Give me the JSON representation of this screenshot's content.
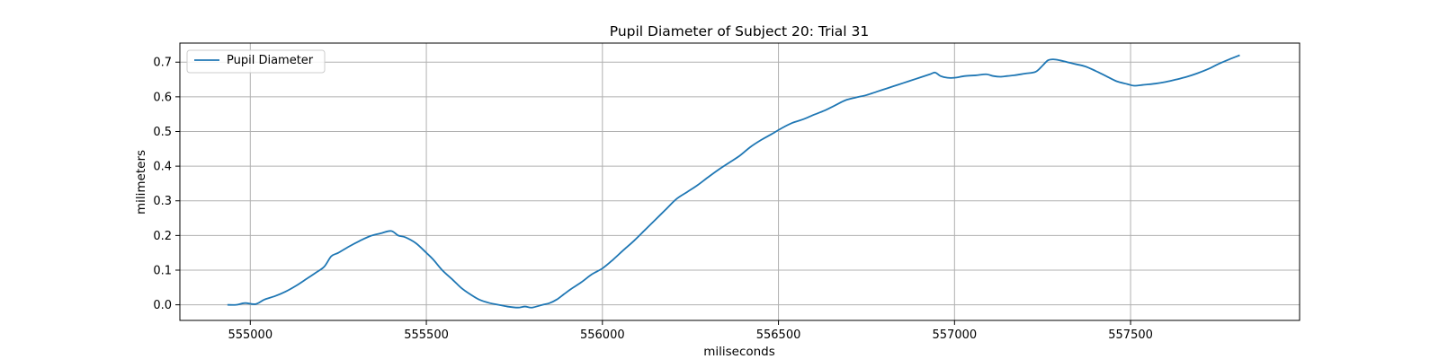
{
  "chart_data": {
    "type": "line",
    "title": "Pupil Diameter of Subject 20: Trial 31",
    "xlabel": "miliseconds",
    "ylabel": "milimeters",
    "xlim": [
      554800,
      557980
    ],
    "ylim": [
      -0.045,
      0.755
    ],
    "xticks": [
      555000,
      555500,
      556000,
      556500,
      557000,
      557500
    ],
    "xtick_labels": [
      "555000",
      "555500",
      "556000",
      "556500",
      "557000",
      "557500"
    ],
    "yticks": [
      0.0,
      0.1,
      0.2,
      0.3,
      0.4,
      0.5,
      0.6,
      0.7
    ],
    "ytick_labels": [
      "0.0",
      "0.1",
      "0.2",
      "0.3",
      "0.4",
      "0.5",
      "0.6",
      "0.7"
    ],
    "grid": true,
    "legend_position": "top-left",
    "colors": {
      "series": "#1f77b4",
      "grid": "#b0b0b0"
    },
    "series": [
      {
        "name": "Pupil Diameter",
        "x": [
          554935,
          554960,
          554985,
          555015,
          555040,
          555070,
          555100,
          555130,
          555160,
          555185,
          555210,
          555230,
          555250,
          555280,
          555310,
          555340,
          555370,
          555400,
          555420,
          555440,
          555470,
          555500,
          555520,
          555545,
          555575,
          555600,
          555625,
          555650,
          555680,
          555705,
          555730,
          555760,
          555780,
          555800,
          555830,
          555850,
          555870,
          555890,
          555910,
          555940,
          555970,
          556000,
          556030,
          556060,
          556090,
          556120,
          556150,
          556180,
          556210,
          556240,
          556270,
          556300,
          556330,
          556360,
          556390,
          556420,
          556450,
          556480,
          556510,
          556540,
          556570,
          556600,
          556630,
          556660,
          556690,
          556720,
          556750,
          556780,
          556810,
          556840,
          556870,
          556900,
          556930,
          556945,
          556960,
          556980,
          557000,
          557030,
          557060,
          557090,
          557110,
          557130,
          557150,
          557170,
          557200,
          557230,
          557250,
          557265,
          557280,
          557300,
          557320,
          557340,
          557370,
          557400,
          557430,
          557460,
          557490,
          557510,
          557540,
          557570,
          557600,
          557630,
          557660,
          557690,
          557720,
          557750,
          557780,
          557810
        ],
        "y": [
          0.0,
          0.0,
          0.005,
          0.002,
          0.015,
          0.025,
          0.038,
          0.055,
          0.075,
          0.092,
          0.11,
          0.14,
          0.15,
          0.168,
          0.184,
          0.198,
          0.206,
          0.213,
          0.2,
          0.195,
          0.178,
          0.15,
          0.13,
          0.1,
          0.072,
          0.048,
          0.03,
          0.015,
          0.005,
          0.0,
          -0.005,
          -0.008,
          -0.005,
          -0.008,
          0.0,
          0.005,
          0.015,
          0.03,
          0.045,
          0.065,
          0.088,
          0.105,
          0.13,
          0.158,
          0.185,
          0.215,
          0.245,
          0.275,
          0.305,
          0.325,
          0.345,
          0.368,
          0.39,
          0.41,
          0.43,
          0.455,
          0.475,
          0.492,
          0.51,
          0.525,
          0.535,
          0.548,
          0.56,
          0.575,
          0.59,
          0.598,
          0.605,
          0.615,
          0.625,
          0.635,
          0.645,
          0.655,
          0.665,
          0.67,
          0.66,
          0.655,
          0.655,
          0.66,
          0.662,
          0.665,
          0.66,
          0.658,
          0.66,
          0.662,
          0.667,
          0.672,
          0.69,
          0.705,
          0.708,
          0.705,
          0.7,
          0.695,
          0.688,
          0.675,
          0.66,
          0.645,
          0.637,
          0.632,
          0.635,
          0.638,
          0.643,
          0.65,
          0.658,
          0.668,
          0.68,
          0.695,
          0.708,
          0.72
        ]
      }
    ]
  }
}
